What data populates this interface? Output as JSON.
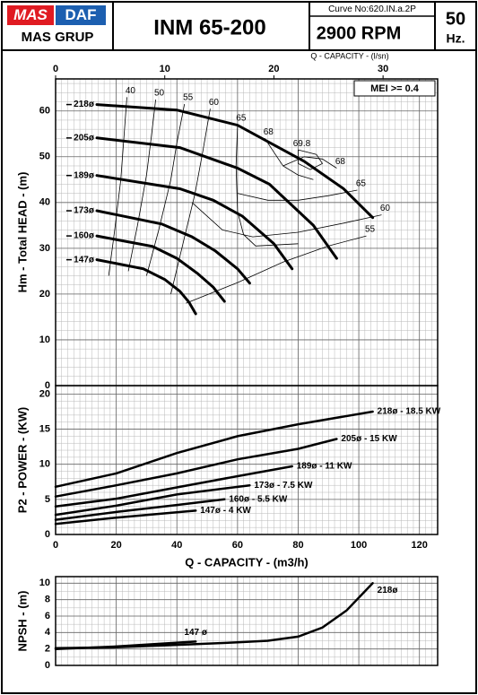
{
  "header": {
    "logo_left": "MAS",
    "logo_right": "DAF",
    "logo_bottom": "MAS GRUP",
    "model": "INM 65-200",
    "curve_no": "Curve No:620.IN.a.2P",
    "speed": "2900 RPM",
    "frequency": "50",
    "frequency_unit": "Hz."
  },
  "chart_data": [
    {
      "type": "line",
      "ylabel": "Hm - Total HEAD - (m)",
      "x2label": "Q - CAPACITY - (l/sn)",
      "annotation": "MEI >= 0.4",
      "xlim": [
        0,
        126
      ],
      "xticks": [
        0,
        20,
        40,
        60,
        80,
        100,
        120
      ],
      "show_xtick_labels": false,
      "x2lim": [
        0,
        35
      ],
      "x2ticks": [
        0,
        10,
        20,
        30
      ],
      "ylim": [
        0,
        67
      ],
      "yticks": [
        0,
        10,
        20,
        30,
        40,
        50,
        60
      ],
      "grid": true,
      "minor_grid": {
        "x": 2,
        "y": 2
      },
      "series": [
        {
          "name": "218ø",
          "color": "#000000",
          "x": [
            13.6,
            40,
            60,
            82,
            95,
            104.6
          ],
          "values": [
            61.4,
            60.2,
            56.9,
            49,
            43,
            36.7
          ]
        },
        {
          "name": "205ø",
          "color": "#000000",
          "x": [
            13.6,
            41,
            60,
            70.5,
            85,
            92.7
          ],
          "values": [
            54.1,
            52,
            47.5,
            44,
            35,
            27.8
          ]
        },
        {
          "name": "189ø",
          "color": "#000000",
          "x": [
            13.6,
            41,
            52,
            61.6,
            72,
            78
          ],
          "values": [
            45.9,
            43,
            40.5,
            37,
            31,
            25.5
          ]
        },
        {
          "name": "173ø",
          "color": "#000000",
          "x": [
            13.6,
            35,
            45,
            52.7,
            60,
            64
          ],
          "values": [
            38.2,
            35.3,
            32.5,
            29.4,
            25.5,
            22.4
          ]
        },
        {
          "name": "160ø",
          "color": "#000000",
          "x": [
            13.6,
            32,
            40,
            46.8,
            52,
            55.7
          ],
          "values": [
            32.7,
            30.4,
            27.8,
            24.5,
            21.5,
            18.4
          ]
        },
        {
          "name": "147ø",
          "color": "#000000",
          "x": [
            13.6,
            29,
            36,
            41,
            44,
            46.2
          ],
          "values": [
            27.5,
            25.5,
            23.2,
            20.6,
            18.2,
            15.7
          ]
        }
      ],
      "efficiency_curves": [
        {
          "label": "40",
          "x": [
            23.5,
            22.5,
            21.5,
            19.5,
            17.5
          ],
          "y": [
            63,
            54,
            45,
            34,
            24
          ]
        },
        {
          "label": "50",
          "x": [
            33,
            31.5,
            30,
            27,
            24
          ],
          "y": [
            62.5,
            54,
            46,
            35,
            25
          ]
        },
        {
          "label": "55",
          "x": [
            42.5,
            40,
            38,
            34,
            30
          ],
          "y": [
            61.5,
            53,
            45,
            34,
            24
          ]
        },
        {
          "label": "60",
          "x": [
            51,
            48.5,
            46,
            42,
            38
          ],
          "y": [
            60.5,
            51,
            42,
            31,
            20
          ]
        },
        {
          "label": "65",
          "x": [
            60,
            59.5,
            60,
            62,
            66,
            80
          ],
          "y": [
            57,
            48,
            38,
            33,
            30.5,
            31
          ]
        },
        {
          "label": "68",
          "x": [
            69,
            72,
            75,
            80,
            85
          ],
          "y": [
            54,
            51,
            48,
            46,
            45
          ]
        },
        {
          "label": "69.8",
          "x": [
            80,
            86,
            88,
            84,
            80,
            80
          ],
          "y": [
            51.5,
            50.5,
            48.5,
            47.2,
            48.5,
            51.5
          ]
        },
        {
          "label": "68",
          "x": [
            92.7,
            88,
            82,
            75
          ],
          "y": [
            47.5,
            49.5,
            50,
            48
          ]
        },
        {
          "label": "65",
          "x": [
            99.5,
            90,
            80,
            70,
            60
          ],
          "y": [
            42.7,
            41.5,
            40.5,
            40.5,
            42
          ]
        },
        {
          "label": "60",
          "x": [
            107.5,
            95,
            80,
            65,
            55,
            45
          ],
          "y": [
            37.3,
            35.5,
            33.5,
            32.5,
            34,
            40
          ]
        },
        {
          "label": "55",
          "x": [
            102.5,
            90,
            75,
            60,
            43
          ],
          "y": [
            32.7,
            30.5,
            27,
            22.5,
            18
          ]
        }
      ]
    },
    {
      "type": "line",
      "ylabel": "P2 - POWER - (KW)",
      "xlabel": "Q - CAPACITY - (m3/h)",
      "xlim": [
        0,
        126
      ],
      "xticks": [
        0,
        20,
        40,
        60,
        80,
        100,
        120
      ],
      "show_xtick_labels": true,
      "ylim": [
        0,
        21.2
      ],
      "yticks": [
        0,
        5,
        10,
        15,
        20
      ],
      "grid": true,
      "minor_grid": {
        "x": 2,
        "y": 1
      },
      "series": [
        {
          "name": "218ø",
          "label": "218ø - 18.5 KW",
          "color": "#000000",
          "x": [
            0,
            20,
            40,
            60,
            80,
            104.6
          ],
          "values": [
            6.8,
            8.7,
            11.6,
            14,
            15.7,
            17.5
          ]
        },
        {
          "name": "205ø",
          "label": "205ø - 15 KW",
          "color": "#000000",
          "x": [
            0,
            20,
            40,
            60,
            80,
            92.7
          ],
          "values": [
            5.4,
            7,
            8.7,
            10.7,
            12.2,
            13.6
          ]
        },
        {
          "name": "189ø",
          "label": "189ø - 11 KW",
          "color": "#000000",
          "x": [
            0,
            20,
            40,
            60,
            78
          ],
          "values": [
            4,
            5.1,
            6.7,
            8.3,
            9.7
          ]
        },
        {
          "name": "173ø",
          "label": "173ø - 7.5 KW",
          "color": "#000000",
          "x": [
            0,
            20,
            40,
            64
          ],
          "values": [
            2.8,
            4.1,
            5.7,
            7
          ]
        },
        {
          "name": "160ø",
          "label": "160ø - 5.5 KW",
          "color": "#000000",
          "x": [
            0,
            20,
            40,
            55.7
          ],
          "values": [
            2.1,
            3.2,
            4.2,
            5
          ]
        },
        {
          "name": "147ø",
          "label": "147ø - 4 KW",
          "color": "#000000",
          "x": [
            0,
            20,
            46.2
          ],
          "values": [
            1.5,
            2.4,
            3.4
          ]
        }
      ]
    },
    {
      "type": "line",
      "ylabel": "NPSH - (m)",
      "xlim": [
        0,
        126
      ],
      "xticks": [
        0,
        20,
        40,
        60,
        80,
        100,
        120
      ],
      "show_xtick_labels": false,
      "ylim": [
        0,
        10.8
      ],
      "yticks": [
        0,
        2,
        4,
        6,
        8,
        10
      ],
      "grid": true,
      "minor_grid": {
        "x": 2,
        "y": 1
      },
      "series": [
        {
          "name": "218ø",
          "label": "218ø",
          "color": "#000000",
          "x": [
            0,
            20,
            40,
            60,
            70,
            80,
            88,
            96,
            104.6
          ],
          "values": [
            2.1,
            2.2,
            2.5,
            2.8,
            3,
            3.5,
            4.6,
            6.7,
            10
          ]
        },
        {
          "name": "147ø",
          "label": "147 ø",
          "color": "#000000",
          "x": [
            0,
            20,
            46.2
          ],
          "values": [
            2,
            2.3,
            2.9
          ]
        }
      ]
    }
  ]
}
